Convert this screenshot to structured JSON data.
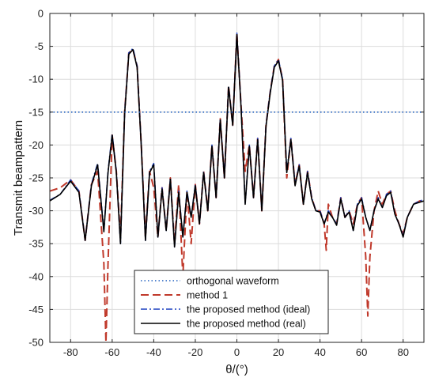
{
  "chart_data": {
    "type": "line",
    "title": "",
    "xlabel": "θ/(°)",
    "ylabel": "Transmit beampattern",
    "xlim": [
      -90,
      90
    ],
    "ylim": [
      -50,
      0
    ],
    "xticks": [
      -80,
      -60,
      -40,
      -20,
      0,
      20,
      40,
      60,
      80
    ],
    "yticks": [
      0,
      -5,
      -10,
      -15,
      -20,
      -25,
      -30,
      -35,
      -40,
      -45,
      -50
    ],
    "grid": true,
    "legend": "bottom-center",
    "series": [
      {
        "name": "orthogonal waveform",
        "style": "dotted",
        "color": "#1f5fbf",
        "x": [
          -90,
          90
        ],
        "y": [
          -15,
          -15
        ]
      },
      {
        "name": "method 1",
        "style": "dashed",
        "color": "#c0392b",
        "x": [
          -90,
          -85,
          -80,
          -76,
          -73,
          -70,
          -67,
          -64,
          -63,
          -62,
          -60,
          -58,
          -56,
          -54,
          -52,
          -50,
          -48,
          -46,
          -44,
          -42,
          -40,
          -38,
          -36,
          -34,
          -32,
          -30,
          -28,
          -26,
          -24,
          -22,
          -20,
          -18,
          -16,
          -14,
          -12,
          -10,
          -8,
          -6,
          -4,
          -2,
          0,
          2,
          4,
          6,
          8,
          10,
          12,
          14,
          16,
          18,
          20,
          22,
          24,
          26,
          28,
          30,
          32,
          34,
          36,
          38,
          40,
          42,
          43,
          44,
          46,
          48,
          50,
          52,
          54,
          56,
          58,
          60,
          62,
          63,
          64,
          66,
          68,
          70,
          72,
          74,
          76,
          78,
          80,
          82,
          85,
          88,
          90
        ],
        "y": [
          -27,
          -26.5,
          -25.3,
          -27,
          -34.5,
          -26,
          -24,
          -38,
          -50,
          -38,
          -18.5,
          -24,
          -34,
          -15,
          -6,
          -5.5,
          -8,
          -20,
          -34,
          -24,
          -26.5,
          -34,
          -26.5,
          -33,
          -25,
          -35,
          -26,
          -40,
          -27,
          -35,
          -26,
          -32,
          -24,
          -30,
          -20,
          -28,
          -16,
          -25,
          -11,
          -17,
          -3,
          -14,
          -24,
          -20,
          -28,
          -19,
          -30,
          -17,
          -12,
          -8,
          -7,
          -10,
          -25,
          -19,
          -26,
          -23,
          -29,
          -24,
          -28,
          -30,
          -30,
          -32,
          -36,
          -29,
          -31,
          -32,
          -28,
          -31,
          -30,
          -32,
          -29,
          -28,
          -37,
          -46,
          -37,
          -30,
          -27,
          -29,
          -27.5,
          -27,
          -30,
          -32,
          -33.5,
          -31,
          -29,
          -28.5,
          -28.5
        ]
      },
      {
        "name": "the proposed method (ideal)",
        "style": "dashdot",
        "color": "#1a3fbf",
        "x": [
          -90,
          -85,
          -80,
          -76,
          -73,
          -70,
          -67,
          -64,
          -62,
          -60,
          -58,
          -56,
          -54,
          -52,
          -50,
          -48,
          -46,
          -44,
          -42,
          -40,
          -38,
          -36,
          -34,
          -32,
          -30,
          -28,
          -26,
          -24,
          -22,
          -20,
          -18,
          -16,
          -14,
          -12,
          -10,
          -8,
          -6,
          -4,
          -2,
          0,
          2,
          4,
          6,
          8,
          10,
          12,
          14,
          16,
          18,
          20,
          22,
          24,
          26,
          28,
          30,
          32,
          34,
          36,
          38,
          40,
          42,
          44,
          46,
          48,
          50,
          52,
          54,
          56,
          58,
          60,
          62,
          64,
          66,
          68,
          70,
          72,
          74,
          76,
          78,
          80,
          82,
          85,
          88,
          90
        ],
        "y": [
          -28.4,
          -27.5,
          -25.3,
          -27,
          -34.5,
          -26,
          -22.8,
          -33,
          -24,
          -18.3,
          -24,
          -35,
          -15,
          -6,
          -5.3,
          -8,
          -20,
          -34.5,
          -24,
          -22.8,
          -34,
          -26.5,
          -33,
          -25,
          -35.5,
          -27,
          -34,
          -27,
          -31,
          -26,
          -32,
          -24,
          -30,
          -20,
          -28,
          -16,
          -25,
          -11,
          -17,
          -3,
          -14,
          -29,
          -20,
          -28,
          -19,
          -30,
          -17,
          -12,
          -8,
          -7,
          -10,
          -24,
          -19,
          -26,
          -23,
          -29,
          -24,
          -28,
          -30,
          -30,
          -32,
          -30,
          -31,
          -32,
          -28,
          -31,
          -30,
          -33,
          -29,
          -28,
          -31,
          -33,
          -30,
          -28,
          -29.5,
          -27.5,
          -27,
          -30.5,
          -32,
          -33.8,
          -31,
          -29,
          -28.5,
          -28.3
        ]
      },
      {
        "name": "the proposed method (real)",
        "style": "solid",
        "color": "#000000",
        "x": [
          -90,
          -85,
          -80,
          -76,
          -73,
          -70,
          -67,
          -64,
          -62,
          -60,
          -58,
          -56,
          -54,
          -52,
          -50,
          -48,
          -46,
          -44,
          -42,
          -40,
          -38,
          -36,
          -34,
          -32,
          -30,
          -28,
          -26,
          -24,
          -22,
          -20,
          -18,
          -16,
          -14,
          -12,
          -10,
          -8,
          -6,
          -4,
          -2,
          0,
          2,
          4,
          6,
          8,
          10,
          12,
          14,
          16,
          18,
          20,
          22,
          24,
          26,
          28,
          30,
          32,
          34,
          36,
          38,
          40,
          42,
          44,
          46,
          48,
          50,
          52,
          54,
          56,
          58,
          60,
          62,
          64,
          66,
          68,
          70,
          72,
          74,
          76,
          78,
          80,
          82,
          85,
          88,
          90
        ],
        "y": [
          -28.5,
          -27.5,
          -25.5,
          -27.2,
          -34.5,
          -26.2,
          -23,
          -33.2,
          -24.2,
          -18.5,
          -24.2,
          -35,
          -15.2,
          -6.2,
          -5.5,
          -8.2,
          -20.2,
          -34.5,
          -24.2,
          -23,
          -34,
          -26.7,
          -33,
          -25.2,
          -35.5,
          -27.2,
          -34,
          -27.2,
          -31,
          -26.2,
          -32,
          -24.2,
          -30,
          -20.2,
          -28,
          -16.2,
          -25,
          -11.2,
          -17,
          -3.2,
          -14.2,
          -29,
          -20.2,
          -28,
          -19.2,
          -30,
          -17.2,
          -12.2,
          -8.2,
          -7.2,
          -10.2,
          -24.2,
          -19.2,
          -26.2,
          -23.2,
          -29,
          -24.2,
          -28.2,
          -30,
          -30.2,
          -32,
          -30.2,
          -31,
          -32.2,
          -28.2,
          -31,
          -30.2,
          -33,
          -29.2,
          -28.2,
          -31,
          -33,
          -30,
          -28.2,
          -29.5,
          -27.7,
          -27.2,
          -30.5,
          -32,
          -34,
          -31,
          -29,
          -28.7,
          -28.5
        ]
      }
    ]
  }
}
